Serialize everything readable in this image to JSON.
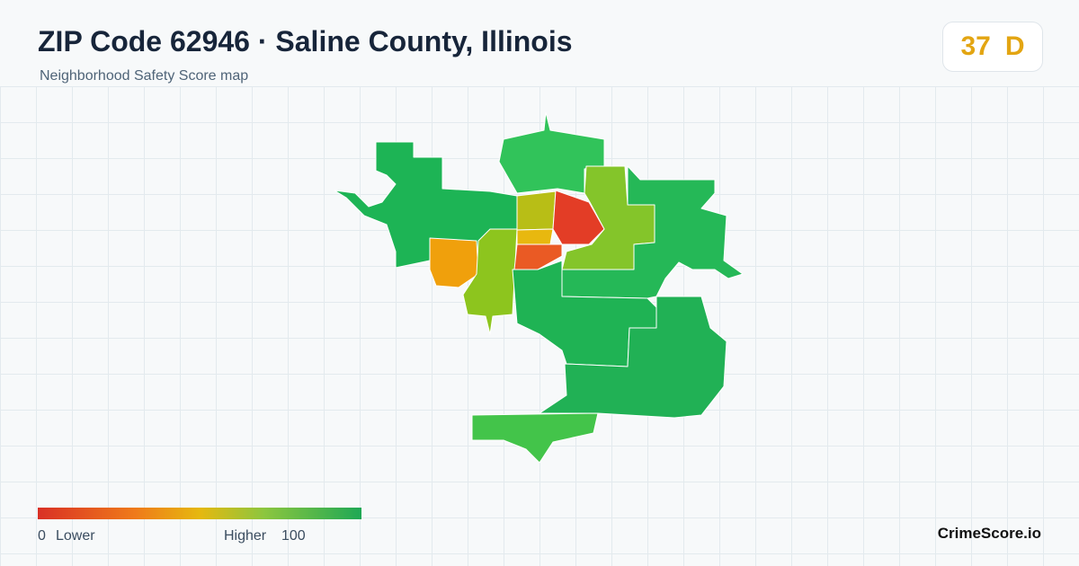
{
  "header": {
    "title": "ZIP Code 62946 · Saline County, Illinois",
    "subtitle": "Neighborhood Safety Score map"
  },
  "score": {
    "value": "37",
    "grade": "D"
  },
  "legend": {
    "min": "0",
    "min_label": "Lower",
    "max_label": "Higher",
    "max": "100"
  },
  "brand": "CrimeScore.io"
}
